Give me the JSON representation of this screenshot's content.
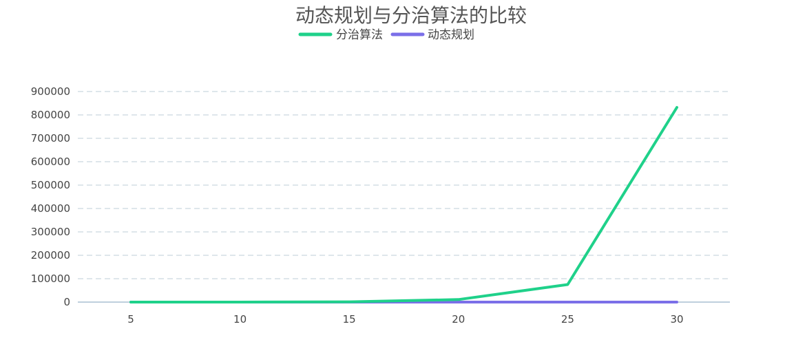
{
  "chart_data": {
    "type": "line",
    "title": "动态规划与分治算法的比较",
    "categories": [
      "5",
      "10",
      "15",
      "20",
      "25",
      "30"
    ],
    "series": [
      {
        "name": "分治算法",
        "values": [
          8,
          88,
          1000,
          10900,
          75000,
          832000
        ],
        "color": "#1fd18a"
      },
      {
        "name": "动态规划",
        "values": [
          5,
          10,
          15,
          20,
          25,
          30
        ],
        "color": "#7b6fe8"
      }
    ],
    "ylim": [
      0,
      900000
    ],
    "yticks": [
      "0",
      "100000",
      "200000",
      "300000",
      "400000",
      "500000",
      "600000",
      "700000",
      "800000",
      "900000"
    ],
    "grid": true,
    "legend_position": "top-center",
    "xlabel": "",
    "ylabel": ""
  }
}
